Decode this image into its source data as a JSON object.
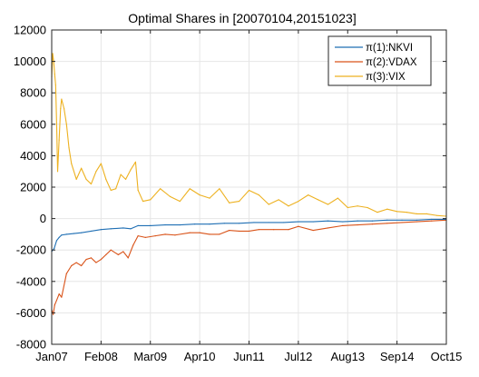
{
  "chart_data": {
    "type": "line",
    "title": "Optimal Shares in [20070104,20151023]",
    "xlabel": "",
    "ylabel": "",
    "x_tick_labels": [
      "Jan07",
      "Feb08",
      "Mar09",
      "Apr10",
      "Jun11",
      "Jul12",
      "Aug13",
      "Sep14",
      "Oct15"
    ],
    "x_tick_positions": [
      0,
      1,
      2,
      3,
      4,
      5,
      6,
      7,
      8
    ],
    "y_tick_labels": [
      "12000",
      "10000",
      "8000",
      "6000",
      "4000",
      "2000",
      "0",
      "-2000",
      "-4000",
      "-6000",
      "-8000"
    ],
    "xlim": [
      0,
      8
    ],
    "ylim": [
      -8000,
      12000
    ],
    "grid": true,
    "legend_position": "top-right",
    "series": [
      {
        "name": "π(1):NKVI",
        "color": "#1f6fb4",
        "x": [
          0,
          0.05,
          0.1,
          0.15,
          0.2,
          0.3,
          0.45,
          0.6,
          0.8,
          1.0,
          1.2,
          1.45,
          1.6,
          1.75,
          2.0,
          2.3,
          2.6,
          2.9,
          3.2,
          3.5,
          3.8,
          4.1,
          4.4,
          4.7,
          5.0,
          5.3,
          5.6,
          5.9,
          6.2,
          6.5,
          6.8,
          7.1,
          7.4,
          7.7,
          8.0
        ],
        "y": [
          -2100,
          -1900,
          -1400,
          -1200,
          -1050,
          -1000,
          -950,
          -900,
          -800,
          -700,
          -650,
          -600,
          -650,
          -450,
          -450,
          -400,
          -400,
          -350,
          -350,
          -300,
          -300,
          -250,
          -250,
          -250,
          -200,
          -200,
          -150,
          -200,
          -150,
          -150,
          -100,
          -100,
          -100,
          -50,
          -50
        ]
      },
      {
        "name": "π(2):VDAX",
        "color": "#d95319",
        "x": [
          0,
          0.03,
          0.06,
          0.1,
          0.15,
          0.2,
          0.3,
          0.4,
          0.5,
          0.6,
          0.7,
          0.8,
          0.9,
          1.0,
          1.1,
          1.2,
          1.35,
          1.45,
          1.55,
          1.65,
          1.75,
          1.9,
          2.1,
          2.3,
          2.5,
          2.8,
          3.0,
          3.2,
          3.4,
          3.6,
          3.8,
          4.0,
          4.2,
          4.5,
          4.8,
          5.0,
          5.3,
          5.6,
          5.9,
          6.2,
          6.5,
          6.8,
          7.1,
          7.4,
          7.7,
          8.0
        ],
        "y": [
          -5800,
          -6100,
          -5500,
          -5200,
          -4800,
          -5000,
          -3500,
          -3000,
          -2800,
          -3000,
          -2600,
          -2500,
          -2800,
          -2600,
          -2300,
          -2000,
          -2300,
          -2100,
          -2500,
          -1700,
          -1100,
          -1200,
          -1100,
          -1000,
          -1050,
          -900,
          -900,
          -1000,
          -1000,
          -750,
          -800,
          -800,
          -700,
          -700,
          -700,
          -500,
          -750,
          -600,
          -450,
          -400,
          -350,
          -300,
          -250,
          -200,
          -150,
          -100
        ]
      },
      {
        "name": "π(3):VIX",
        "color": "#edb120",
        "x": [
          0,
          0.02,
          0.04,
          0.06,
          0.08,
          0.1,
          0.12,
          0.15,
          0.18,
          0.2,
          0.25,
          0.3,
          0.35,
          0.4,
          0.5,
          0.6,
          0.7,
          0.8,
          0.9,
          1.0,
          1.1,
          1.2,
          1.3,
          1.4,
          1.5,
          1.6,
          1.7,
          1.75,
          1.85,
          2.0,
          2.2,
          2.4,
          2.6,
          2.8,
          3.0,
          3.2,
          3.4,
          3.6,
          3.8,
          4.0,
          4.2,
          4.4,
          4.6,
          4.8,
          5.0,
          5.2,
          5.4,
          5.6,
          5.8,
          6.0,
          6.2,
          6.4,
          6.6,
          6.8,
          7.0,
          7.2,
          7.4,
          7.6,
          7.8,
          8.0
        ],
        "y": [
          9000,
          10500,
          10000,
          9200,
          8500,
          6000,
          3000,
          5000,
          7000,
          7600,
          7000,
          6000,
          4500,
          3500,
          2500,
          3200,
          2500,
          2200,
          3000,
          3500,
          2500,
          1800,
          1900,
          2800,
          2500,
          3100,
          3600,
          1800,
          1100,
          1200,
          1900,
          1400,
          1100,
          1900,
          1500,
          1300,
          1900,
          1000,
          1100,
          1800,
          1500,
          900,
          1200,
          800,
          1100,
          1500,
          1200,
          900,
          1300,
          700,
          800,
          700,
          400,
          600,
          450,
          400,
          300,
          300,
          200,
          150
        ]
      }
    ]
  }
}
